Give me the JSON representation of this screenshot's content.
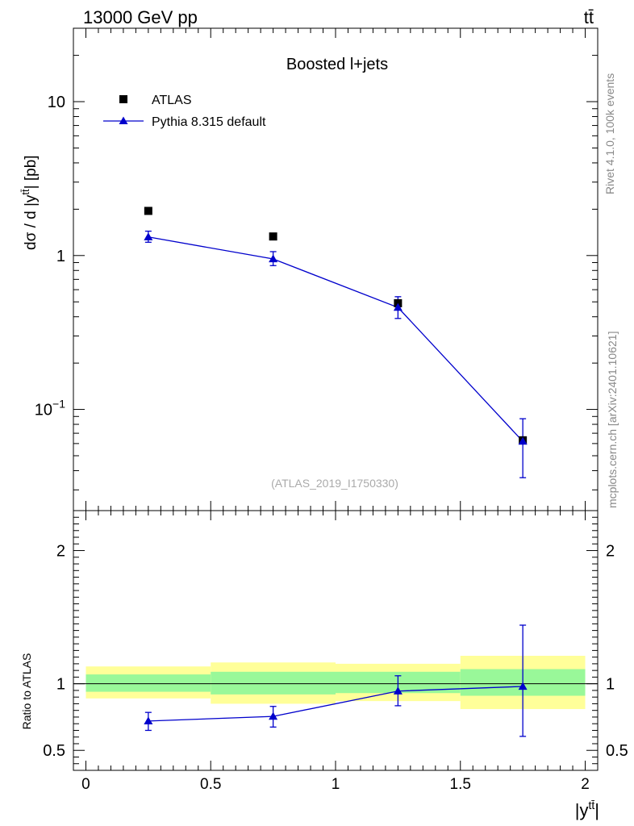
{
  "header": {
    "left": "13000 GeV pp",
    "right": "tt̄"
  },
  "side_labels": {
    "rivet": "Rivet 4.1.0,  100k events",
    "source": "mcplots.cern.ch [arXiv:2401.10621]"
  },
  "chart_data": [
    {
      "type": "scatter",
      "panel": "main",
      "title": "Boosted l+jets",
      "analysis_label": "(ATLAS_2019_I1750330)",
      "ylabel": "dσ / d |y^{t̄t}| [pb]",
      "yscale": "log",
      "ylim": [
        0.022,
        30
      ],
      "xlim": [
        -0.05,
        2.05
      ],
      "y_ticks": [
        {
          "value": 0.1,
          "base": "10",
          "exp": "−1"
        },
        {
          "value": 1,
          "label": "1"
        },
        {
          "value": 10,
          "label": "10"
        }
      ],
      "legend_position": "top-left",
      "series": [
        {
          "name": "ATLAS",
          "color": "#000000",
          "marker": "square",
          "x": [
            0.25,
            0.75,
            1.25,
            1.75
          ],
          "y": [
            1.95,
            1.33,
            0.49,
            0.063
          ]
        },
        {
          "name": "Pythia 8.315 default",
          "color": "#0000cc",
          "marker": "triangle",
          "line": true,
          "x": [
            0.25,
            0.75,
            1.25,
            1.75
          ],
          "y": [
            1.32,
            0.95,
            0.46,
            0.062
          ],
          "yerr_low": [
            1.22,
            0.86,
            0.39,
            0.036
          ],
          "yerr_high": [
            1.44,
            1.06,
            0.54,
            0.087
          ]
        }
      ]
    },
    {
      "type": "line",
      "panel": "ratio",
      "ylabel": "Ratio to ATLAS",
      "xlabel": "|y^{t̄t}|",
      "ylim": [
        0.35,
        2.3
      ],
      "xlim": [
        -0.05,
        2.05
      ],
      "x_ticks": [
        "0",
        "0.5",
        "1",
        "1.5",
        "2"
      ],
      "y_ticks": [
        "0.5",
        "1",
        "2"
      ],
      "reference_line": 1,
      "bands": [
        {
          "x0": 0.0,
          "x1": 0.5,
          "inner": [
            0.94,
            1.07
          ],
          "outer": [
            0.89,
            1.13
          ]
        },
        {
          "x0": 0.5,
          "x1": 1.0,
          "inner": [
            0.92,
            1.09
          ],
          "outer": [
            0.85,
            1.16
          ]
        },
        {
          "x0": 1.0,
          "x1": 1.5,
          "inner": [
            0.93,
            1.09
          ],
          "outer": [
            0.87,
            1.15
          ]
        },
        {
          "x0": 1.5,
          "x1": 2.0,
          "inner": [
            0.91,
            1.11
          ],
          "outer": [
            0.81,
            1.21
          ]
        }
      ],
      "band_colors": {
        "inner": "#99f899",
        "outer": "#ffff99"
      },
      "series": [
        {
          "name": "Pythia 8.315 default",
          "color": "#0000cc",
          "marker": "triangle",
          "x": [
            0.25,
            0.75,
            1.25,
            1.75
          ],
          "y": [
            0.72,
            0.755,
            0.945,
            0.98
          ],
          "yerr_low": [
            0.65,
            0.675,
            0.835,
            0.605
          ],
          "yerr_high": [
            0.785,
            0.83,
            1.06,
            1.44
          ]
        }
      ]
    }
  ]
}
